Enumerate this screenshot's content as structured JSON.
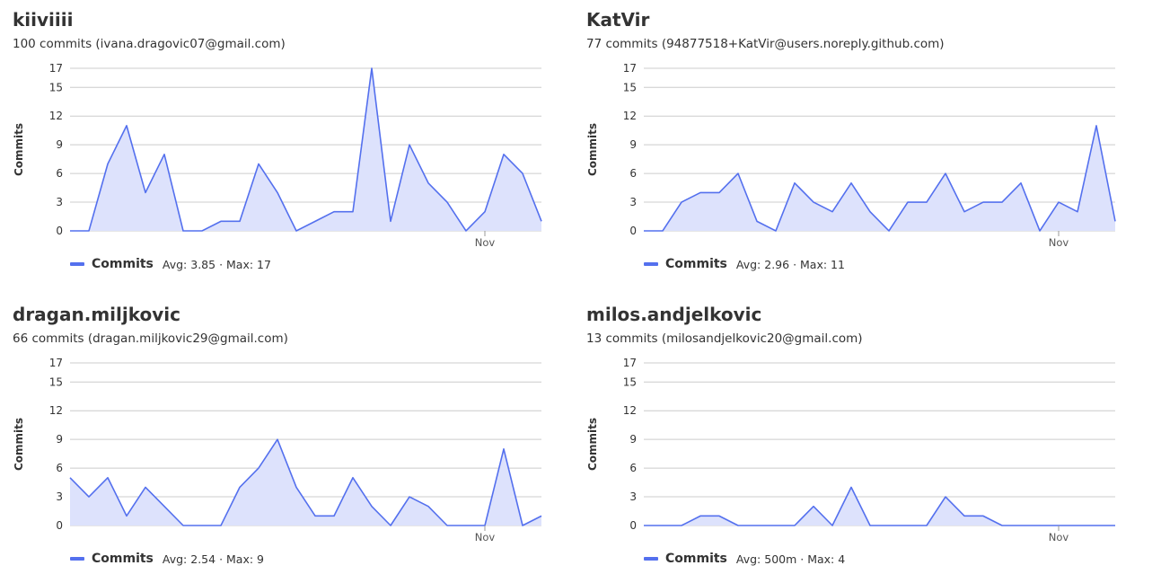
{
  "colors": {
    "line": "#5470ee",
    "fill": "#dde2fc",
    "grid": "#cccccc",
    "tick": "#555555"
  },
  "axis": {
    "ylabel": "Commits",
    "yticks": [
      0,
      3,
      6,
      9,
      12,
      15,
      17
    ],
    "xticks": [
      {
        "label": "Nov",
        "index": 22
      }
    ]
  },
  "legend": {
    "series_name": "Commits",
    "avg_label": "Avg: ",
    "max_label": "Max: ",
    "sep": " · "
  },
  "contributors": [
    {
      "name": "kiiviiii",
      "subtitle": "100 commits (ivana.dragovic07@gmail.com)",
      "avg": "3.85",
      "max": "17"
    },
    {
      "name": "KatVir",
      "subtitle": "77 commits (94877518+KatVir@users.noreply.github.com)",
      "avg": "2.96",
      "max": "11"
    },
    {
      "name": "dragan.miljkovic",
      "subtitle": "66 commits (dragan.miljkovic29@gmail.com)",
      "avg": "2.54",
      "max": "9"
    },
    {
      "name": "milos.andjelkovic",
      "subtitle": "13 commits (milosandjelkovic20@gmail.com)",
      "avg": "500m",
      "max": "4"
    }
  ],
  "chart_data": [
    {
      "type": "area",
      "ylabel": "Commits",
      "ylim": [
        0,
        17
      ],
      "series": [
        {
          "name": "Commits",
          "values": [
            0,
            0,
            7,
            11,
            4,
            8,
            0,
            0,
            1,
            1,
            7,
            4,
            0,
            1,
            2,
            2,
            17,
            1,
            9,
            5,
            3,
            0,
            2,
            8,
            6,
            1
          ]
        }
      ]
    },
    {
      "type": "area",
      "ylabel": "Commits",
      "ylim": [
        0,
        17
      ],
      "series": [
        {
          "name": "Commits",
          "values": [
            0,
            0,
            3,
            4,
            4,
            6,
            1,
            0,
            5,
            3,
            2,
            5,
            2,
            0,
            3,
            3,
            6,
            2,
            3,
            3,
            5,
            0,
            3,
            2,
            11,
            1
          ]
        }
      ]
    },
    {
      "type": "area",
      "ylabel": "Commits",
      "ylim": [
        0,
        17
      ],
      "series": [
        {
          "name": "Commits",
          "values": [
            5,
            3,
            5,
            1,
            4,
            2,
            0,
            0,
            0,
            4,
            6,
            9,
            4,
            1,
            1,
            5,
            2,
            0,
            3,
            2,
            0,
            0,
            0,
            8,
            0,
            1
          ]
        }
      ]
    },
    {
      "type": "area",
      "ylabel": "Commits",
      "ylim": [
        0,
        17
      ],
      "series": [
        {
          "name": "Commits",
          "values": [
            0,
            0,
            0,
            1,
            1,
            0,
            0,
            0,
            0,
            2,
            0,
            4,
            0,
            0,
            0,
            0,
            3,
            1,
            1,
            0,
            0,
            0,
            0,
            0,
            0,
            0
          ]
        }
      ]
    }
  ]
}
